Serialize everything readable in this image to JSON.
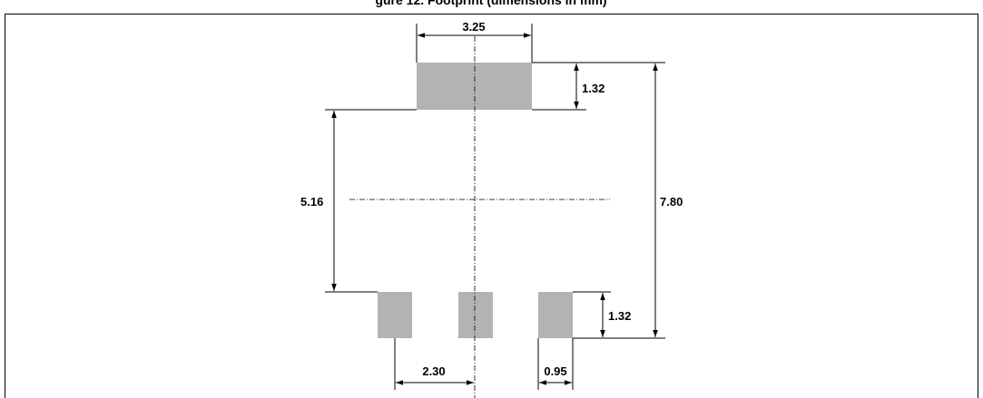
{
  "title_fragment": "gure 12. Footprint (dimensions in mm)",
  "colors": {
    "pad": "#b3b3b3",
    "line": "#000000",
    "frame": "#000000"
  },
  "dimensions": {
    "tab_width": "3.25",
    "tab_height": "1.32",
    "pad_spacing": "5.16",
    "total_height": "7.80",
    "lead_height": "1.32",
    "lead_pitch": "2.30",
    "lead_width": "0.95"
  }
}
